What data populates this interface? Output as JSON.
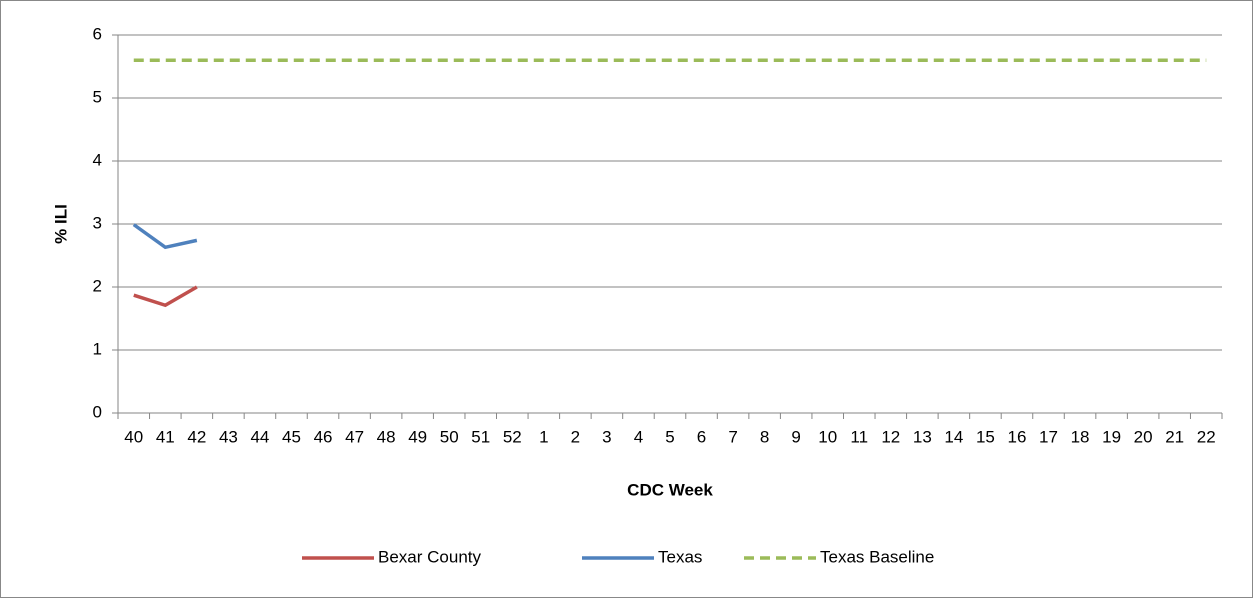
{
  "chart_data": {
    "type": "line",
    "x_label": "CDC Week",
    "y_label": "% ILI",
    "categories": [
      "40",
      "41",
      "42",
      "43",
      "44",
      "45",
      "46",
      "47",
      "48",
      "49",
      "50",
      "51",
      "52",
      "1",
      "2",
      "3",
      "4",
      "5",
      "6",
      "7",
      "8",
      "9",
      "10",
      "11",
      "12",
      "13",
      "14",
      "15",
      "16",
      "17",
      "18",
      "19",
      "20",
      "21",
      "22"
    ],
    "series": [
      {
        "name": "Bexar County",
        "color": "#c0504d",
        "dash": false,
        "values": [
          1.87,
          1.71,
          2.0,
          null,
          null,
          null,
          null,
          null,
          null,
          null,
          null,
          null,
          null,
          null,
          null,
          null,
          null,
          null,
          null,
          null,
          null,
          null,
          null,
          null,
          null,
          null,
          null,
          null,
          null,
          null,
          null,
          null,
          null,
          null,
          null
        ]
      },
      {
        "name": "Texas",
        "color": "#4f81bd",
        "dash": false,
        "values": [
          2.99,
          2.63,
          2.74,
          null,
          null,
          null,
          null,
          null,
          null,
          null,
          null,
          null,
          null,
          null,
          null,
          null,
          null,
          null,
          null,
          null,
          null,
          null,
          null,
          null,
          null,
          null,
          null,
          null,
          null,
          null,
          null,
          null,
          null,
          null,
          null
        ]
      },
      {
        "name": "Texas Baseline",
        "color": "#9bbb59",
        "dash": true,
        "values": [
          5.6,
          5.6,
          5.6,
          5.6,
          5.6,
          5.6,
          5.6,
          5.6,
          5.6,
          5.6,
          5.6,
          5.6,
          5.6,
          5.6,
          5.6,
          5.6,
          5.6,
          5.6,
          5.6,
          5.6,
          5.6,
          5.6,
          5.6,
          5.6,
          5.6,
          5.6,
          5.6,
          5.6,
          5.6,
          5.6,
          5.6,
          5.6,
          5.6,
          5.6,
          5.6
        ]
      }
    ],
    "ylim": [
      0,
      6
    ],
    "yticks": [
      0,
      1,
      2,
      3,
      4,
      5,
      6
    ],
    "grid": true,
    "legend": "bottom"
  }
}
